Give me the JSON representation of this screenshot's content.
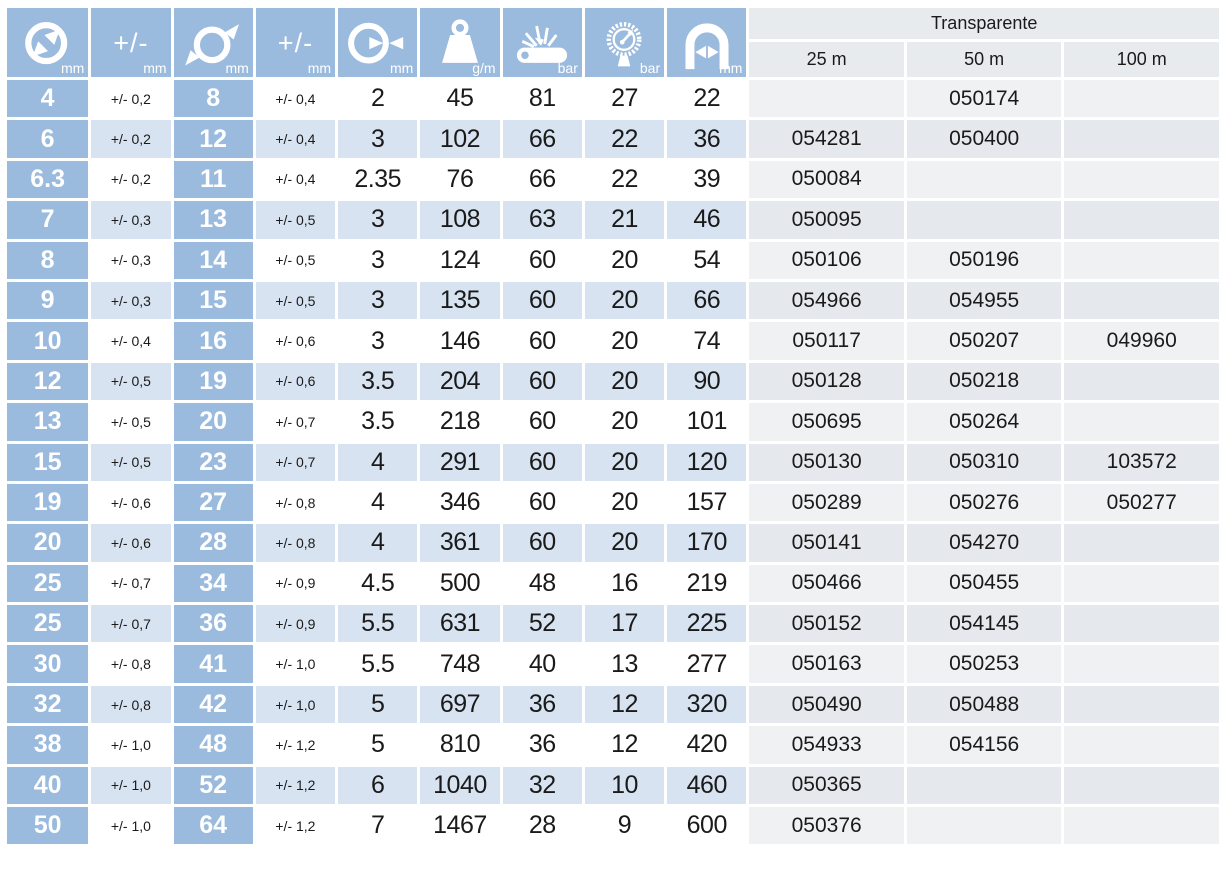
{
  "table": {
    "group_header": "Transparente",
    "length_columns": [
      "25 m",
      "50 m",
      "100 m"
    ],
    "columns": [
      {
        "id": "inner-diameter",
        "icon": "inner-diameter-icon",
        "unit": "mm"
      },
      {
        "id": "inner-tolerance",
        "label": "+/-",
        "unit": "mm"
      },
      {
        "id": "outer-diameter",
        "icon": "outer-diameter-icon",
        "unit": "mm"
      },
      {
        "id": "outer-tolerance",
        "label": "+/-",
        "unit": "mm"
      },
      {
        "id": "wall-thickness",
        "icon": "wall-thickness-icon",
        "unit": "mm"
      },
      {
        "id": "weight",
        "icon": "weight-icon",
        "unit": "g/m"
      },
      {
        "id": "burst-pressure",
        "icon": "burst-pressure-icon",
        "unit": "bar"
      },
      {
        "id": "working-pressure",
        "icon": "pressure-gauge-icon",
        "unit": "bar"
      },
      {
        "id": "bend-radius",
        "icon": "bend-radius-icon",
        "unit": "mm"
      }
    ],
    "rows": [
      [
        "4",
        "+/- 0,2",
        "8",
        "+/- 0,4",
        "2",
        "45",
        "81",
        "27",
        "22",
        "",
        "050174",
        ""
      ],
      [
        "6",
        "+/- 0,2",
        "12",
        "+/- 0,4",
        "3",
        "102",
        "66",
        "22",
        "36",
        "054281",
        "050400",
        ""
      ],
      [
        "6.3",
        "+/- 0,2",
        "11",
        "+/- 0,4",
        "2.35",
        "76",
        "66",
        "22",
        "39",
        "050084",
        "",
        ""
      ],
      [
        "7",
        "+/- 0,3",
        "13",
        "+/- 0,5",
        "3",
        "108",
        "63",
        "21",
        "46",
        "050095",
        "",
        ""
      ],
      [
        "8",
        "+/- 0,3",
        "14",
        "+/- 0,5",
        "3",
        "124",
        "60",
        "20",
        "54",
        "050106",
        "050196",
        ""
      ],
      [
        "9",
        "+/- 0,3",
        "15",
        "+/- 0,5",
        "3",
        "135",
        "60",
        "20",
        "66",
        "054966",
        "054955",
        ""
      ],
      [
        "10",
        "+/- 0,4",
        "16",
        "+/- 0,6",
        "3",
        "146",
        "60",
        "20",
        "74",
        "050117",
        "050207",
        "049960"
      ],
      [
        "12",
        "+/- 0,5",
        "19",
        "+/- 0,6",
        "3.5",
        "204",
        "60",
        "20",
        "90",
        "050128",
        "050218",
        ""
      ],
      [
        "13",
        "+/- 0,5",
        "20",
        "+/- 0,7",
        "3.5",
        "218",
        "60",
        "20",
        "101",
        "050695",
        "050264",
        ""
      ],
      [
        "15",
        "+/- 0,5",
        "23",
        "+/- 0,7",
        "4",
        "291",
        "60",
        "20",
        "120",
        "050130",
        "050310",
        "103572"
      ],
      [
        "19",
        "+/- 0,6",
        "27",
        "+/- 0,8",
        "4",
        "346",
        "60",
        "20",
        "157",
        "050289",
        "050276",
        "050277"
      ],
      [
        "20",
        "+/- 0,6",
        "28",
        "+/- 0,8",
        "4",
        "361",
        "60",
        "20",
        "170",
        "050141",
        "054270",
        ""
      ],
      [
        "25",
        "+/- 0,7",
        "34",
        "+/- 0,9",
        "4.5",
        "500",
        "48",
        "16",
        "219",
        "050466",
        "050455",
        ""
      ],
      [
        "25",
        "+/- 0,7",
        "36",
        "+/- 0,9",
        "5.5",
        "631",
        "52",
        "17",
        "225",
        "050152",
        "054145",
        ""
      ],
      [
        "30",
        "+/- 0,8",
        "41",
        "+/- 1,0",
        "5.5",
        "748",
        "40",
        "13",
        "277",
        "050163",
        "050253",
        ""
      ],
      [
        "32",
        "+/- 0,8",
        "42",
        "+/- 1,0",
        "5",
        "697",
        "36",
        "12",
        "320",
        "050490",
        "050488",
        ""
      ],
      [
        "38",
        "+/- 1,0",
        "48",
        "+/- 1,2",
        "5",
        "810",
        "36",
        "12",
        "420",
        "054933",
        "054156",
        ""
      ],
      [
        "40",
        "+/- 1,0",
        "52",
        "+/- 1,2",
        "6",
        "1040",
        "32",
        "10",
        "460",
        "050365",
        "",
        ""
      ],
      [
        "50",
        "+/- 1,0",
        "64",
        "+/- 1,2",
        "7",
        "1467",
        "28",
        "9",
        "600",
        "050376",
        "",
        ""
      ]
    ]
  },
  "colors": {
    "header_blue": "#9abade",
    "row_alt_blue": "#d8e3f1",
    "code_bg_light": "#eff1f3",
    "code_bg_alt": "#e5e9ee",
    "group_header_bg": "#e8ebee",
    "text": "#1a1a1a",
    "icon_white": "#ffffff"
  }
}
